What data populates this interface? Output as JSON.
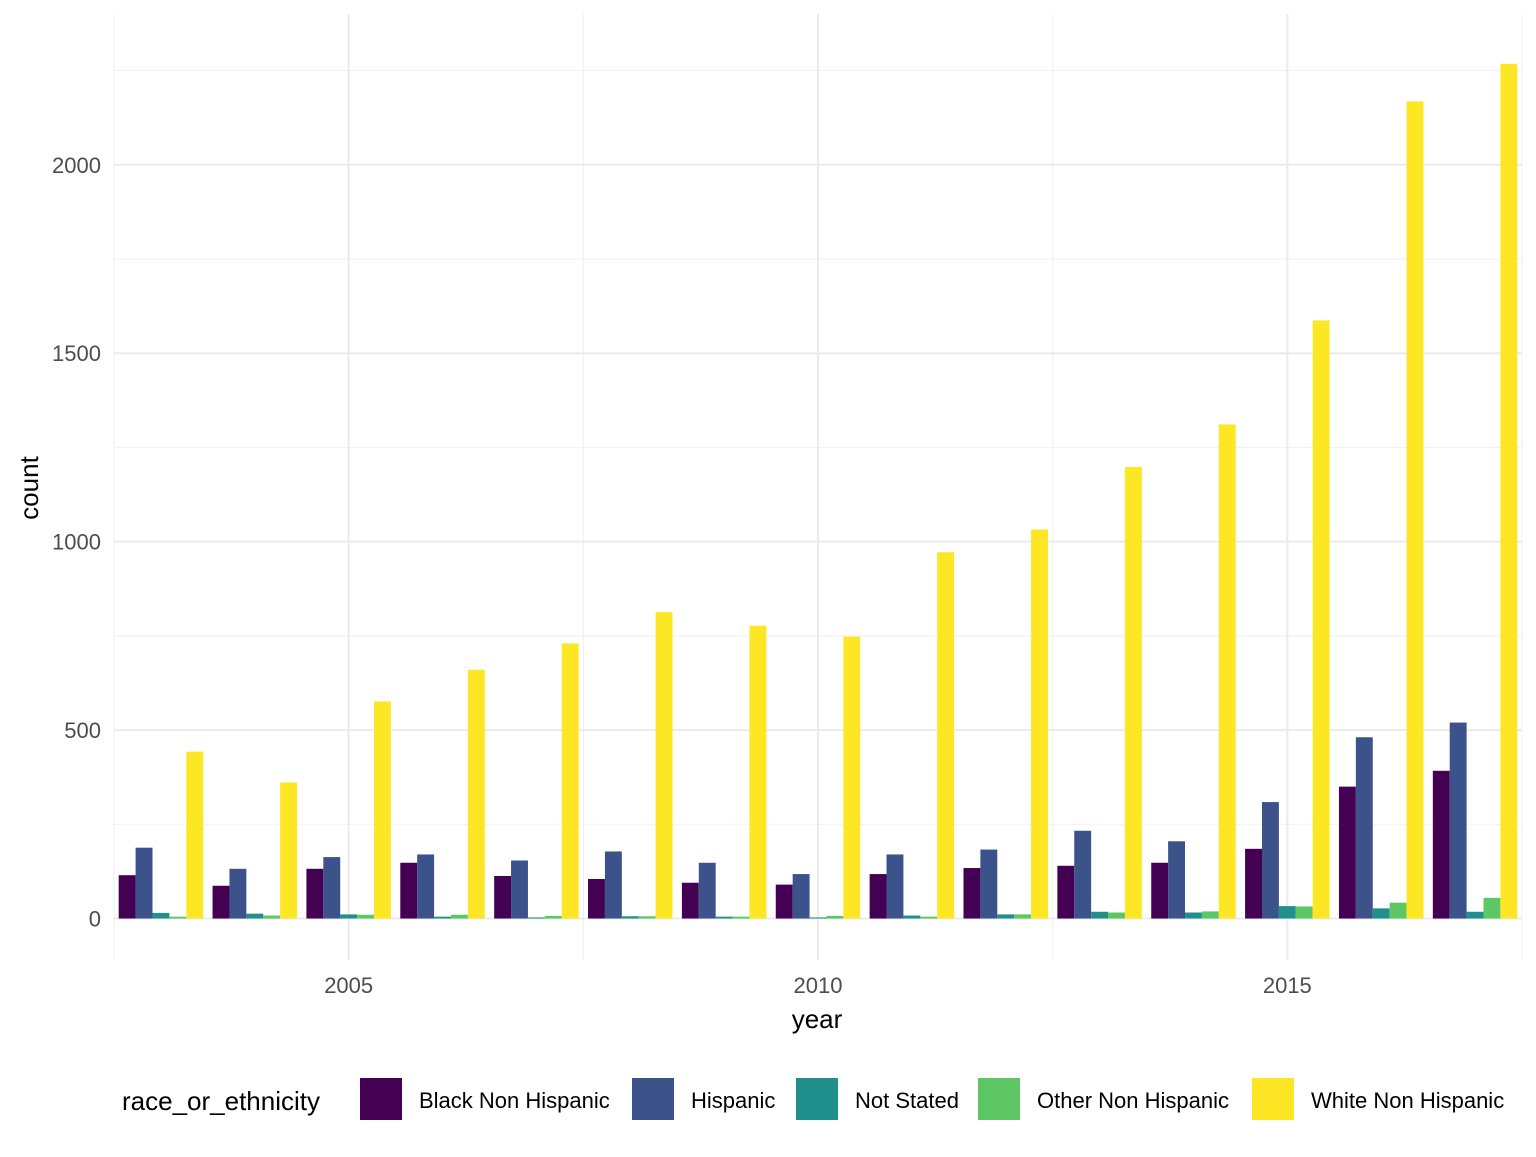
{
  "chart_data": {
    "type": "bar",
    "xlabel": "year",
    "ylabel": "count",
    "xlim": [
      2002.5,
      2017.5
    ],
    "ylim": [
      -110,
      2400
    ],
    "x_ticks": [
      2005,
      2010,
      2015
    ],
    "y_ticks": [
      0,
      500,
      1000,
      1500,
      2000
    ],
    "grid": true,
    "legend_position": "bottom",
    "legend_title": "race_or_ethnicity",
    "categories": [
      2003,
      2004,
      2005,
      2006,
      2007,
      2008,
      2009,
      2010,
      2011,
      2012,
      2013,
      2014,
      2015,
      2016,
      2017
    ],
    "series": [
      {
        "name": "Black Non Hispanic",
        "color": "#440154",
        "values": [
          115,
          87,
          132,
          148,
          113,
          105,
          95,
          90,
          118,
          134,
          140,
          148,
          185,
          350,
          392
        ]
      },
      {
        "name": "Hispanic",
        "color": "#3B528B",
        "values": [
          188,
          132,
          163,
          170,
          154,
          178,
          148,
          118,
          170,
          183,
          233,
          205,
          309,
          481,
          520
        ]
      },
      {
        "name": "Not Stated",
        "color": "#21908C",
        "values": [
          15,
          13,
          11,
          5,
          3,
          6,
          5,
          3,
          8,
          11,
          18,
          16,
          33,
          27,
          18
        ]
      },
      {
        "name": "Other Non Hispanic",
        "color": "#5DC863",
        "values": [
          5,
          8,
          10,
          10,
          7,
          6,
          5,
          7,
          5,
          11,
          16,
          19,
          32,
          42,
          55
        ]
      },
      {
        "name": "White Non Hispanic",
        "color": "#FDE725",
        "values": [
          443,
          361,
          576,
          660,
          730,
          813,
          777,
          748,
          972,
          1032,
          1198,
          1311,
          1587,
          2168,
          2268
        ]
      }
    ]
  }
}
